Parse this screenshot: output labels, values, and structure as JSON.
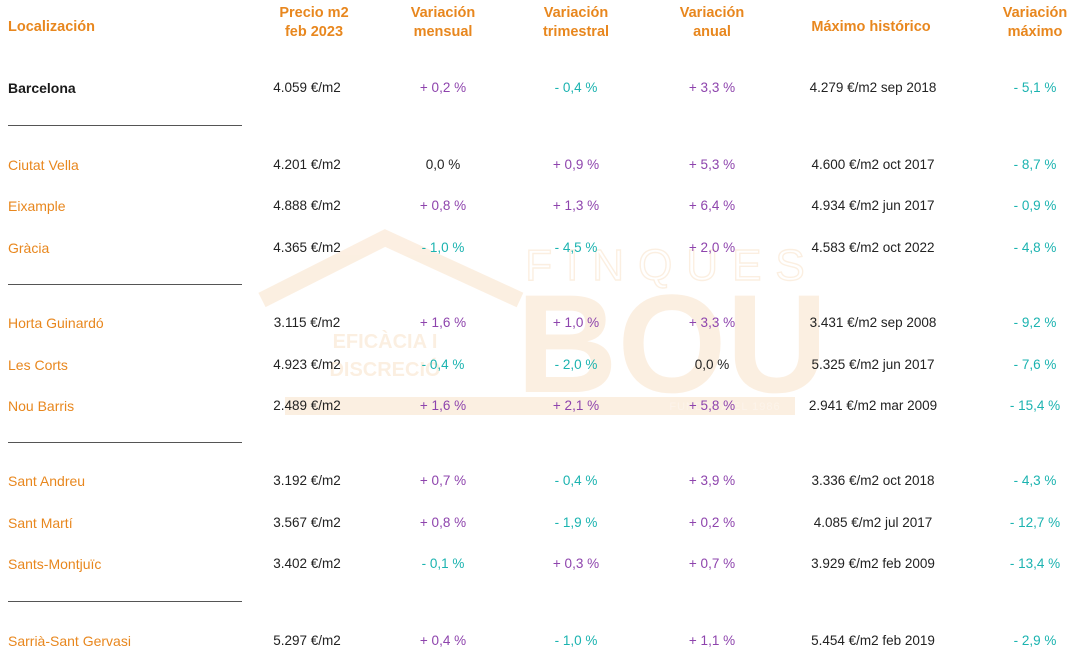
{
  "headers": {
    "loc": "Localización",
    "price": [
      "Precio m2",
      "feb 2023"
    ],
    "monthly": [
      "Variación",
      "mensual"
    ],
    "quarterly": [
      "Variación",
      "trimestral"
    ],
    "annual": [
      "Variación",
      "anual"
    ],
    "max": "Máximo histórico",
    "var_max": [
      "Variación",
      "máximo"
    ]
  },
  "watermark": {
    "top": "FINQUES",
    "main": "BOU",
    "left1": "EFICÀCIA I",
    "left2": "DISCRECIÓ",
    "tagline": "FUNDADA EL 1986"
  },
  "colors": {
    "accent": "#e8871e",
    "positive": "#8e44ad",
    "negative": "#1bb3b0",
    "text": "#222222"
  },
  "rows": [
    {
      "loc": "Barcelona",
      "price": "4.059 €/m2",
      "m": "+ 0,2 %",
      "q": "- 0,4 %",
      "a": "+ 3,3 %",
      "max": "4.279 €/m2 sep 2018",
      "vm": "- 5,1 %"
    },
    {
      "loc": "Ciutat Vella",
      "price": "4.201 €/m2",
      "m": "0,0 %",
      "q": "+ 0,9 %",
      "a": "+ 5,3 %",
      "max": "4.600 €/m2 oct 2017",
      "vm": "- 8,7 %"
    },
    {
      "loc": "Eixample",
      "price": "4.888 €/m2",
      "m": "+ 0,8 %",
      "q": "+ 1,3 %",
      "a": "+ 6,4 %",
      "max": "4.934 €/m2 jun 2017",
      "vm": "- 0,9 %"
    },
    {
      "loc": "Gràcia",
      "price": "4.365 €/m2",
      "m": "- 1,0 %",
      "q": "- 4,5 %",
      "a": "+ 2,0 %",
      "max": "4.583 €/m2 oct 2022",
      "vm": "- 4,8 %"
    },
    {
      "loc": "Horta Guinardó",
      "price": "3.115 €/m2",
      "m": "+ 1,6 %",
      "q": "+ 1,0 %",
      "a": "+ 3,3 %",
      "max": "3.431 €/m2 sep 2008",
      "vm": "- 9,2 %"
    },
    {
      "loc": "Les Corts",
      "price": "4.923 €/m2",
      "m": "- 0,4 %",
      "q": "- 2,0 %",
      "a": "0,0 %",
      "max": "5.325 €/m2 jun 2017",
      "vm": "- 7,6 %"
    },
    {
      "loc": "Nou Barris",
      "price": "2.489 €/m2",
      "m": "+ 1,6 %",
      "q": "+ 2,1 %",
      "a": "+ 5,8 %",
      "max": "2.941 €/m2 mar 2009",
      "vm": "- 15,4 %"
    },
    {
      "loc": "Sant Andreu",
      "price": "3.192 €/m2",
      "m": "+ 0,7 %",
      "q": "- 0,4 %",
      "a": "+ 3,9 %",
      "max": "3.336 €/m2 oct 2018",
      "vm": "- 4,3 %"
    },
    {
      "loc": "Sant Martí",
      "price": "3.567 €/m2",
      "m": "+ 0,8 %",
      "q": "- 1,9 %",
      "a": "+ 0,2 %",
      "max": "4.085 €/m2 jul 2017",
      "vm": "- 12,7 %"
    },
    {
      "loc": "Sants-Montjuïc",
      "price": "3.402 €/m2",
      "m": "- 0,1 %",
      "q": "+ 0,3 %",
      "a": "+ 0,7 %",
      "max": "3.929 €/m2 feb 2009",
      "vm": "- 13,4 %"
    },
    {
      "loc": "Sarrià-Sant Gervasi",
      "price": "5.297 €/m2",
      "m": "+ 0,4 %",
      "q": "- 1,0 %",
      "a": "+ 1,1 %",
      "max": "5.454 €/m2 feb 2019",
      "vm": "- 2,9 %"
    }
  ]
}
